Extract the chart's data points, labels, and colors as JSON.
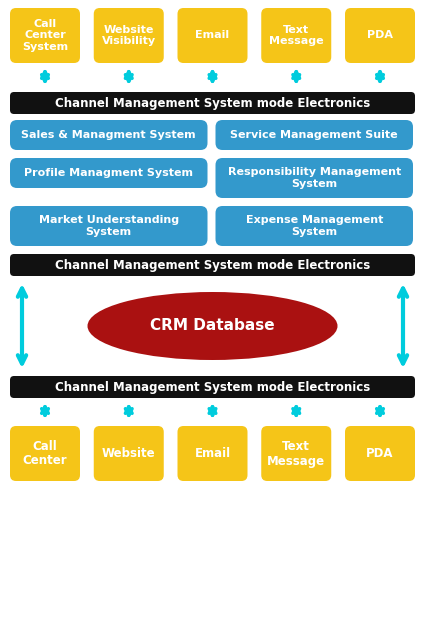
{
  "bg_color": "#ffffff",
  "yellow": "#F5C518",
  "yellow_text": "#ffffff",
  "blue_box": "#3399CC",
  "blue_text": "#ffffff",
  "black_bar": "#111111",
  "black_bar_text": "#ffffff",
  "red_ellipse": "#AA1111",
  "red_text": "#ffffff",
  "cyan_arrow": "#00CCDD",
  "top_boxes": [
    "Call\nCenter\nSystem",
    "Website\nVisibility",
    "Email",
    "Text\nMessage",
    "PDA"
  ],
  "bottom_boxes": [
    "Call\nCenter",
    "Website",
    "Email",
    "Text\nMessage",
    "PDA"
  ],
  "bar_text": "Channel Management System mode Electronics",
  "middle_boxes_left": [
    "Sales & Managment System",
    "Profile Managment System",
    "Market Understanding\nSystem"
  ],
  "middle_boxes_right": [
    "Service Management Suite",
    "Responsibility Management\nSystem",
    "Expense Management\nSystem"
  ],
  "crm_text": "CRM Database",
  "fig_w": 4.25,
  "fig_h": 6.24,
  "dpi": 100
}
